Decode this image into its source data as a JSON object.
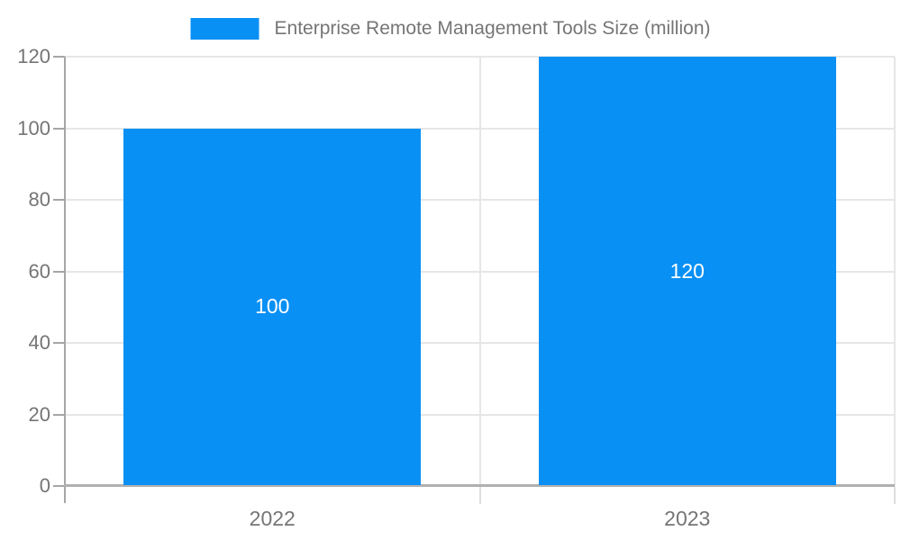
{
  "legend": {
    "label": "Enterprise Remote Management Tools Size (million)"
  },
  "chart_data": {
    "type": "bar",
    "title": "Enterprise Remote Management Tools Size (million)",
    "categories": [
      "2022",
      "2023"
    ],
    "values": [
      100,
      120
    ],
    "data_labels": [
      "100",
      "120"
    ],
    "xlabel": "",
    "ylabel": "",
    "ylim": [
      0,
      120
    ],
    "y_ticks": [
      0,
      20,
      40,
      60,
      80,
      100,
      120
    ],
    "grid": true,
    "legend_position": "top-center",
    "colors": {
      "bar": "#0990f5",
      "data_label": "#ffffff",
      "grid": "#e6e6e6",
      "axis": "#a6a6a6",
      "text": "#757575"
    }
  }
}
